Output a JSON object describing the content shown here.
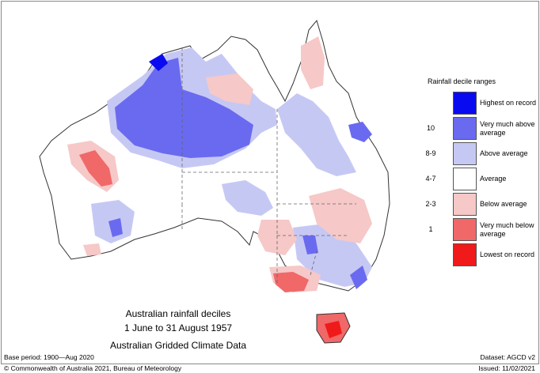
{
  "map": {
    "titles": [
      "Australian rainfall deciles",
      "1 June to 31 August 1957",
      "Australian Gridded Climate Data"
    ],
    "base_period": "Base period: 1900—Aug 2020",
    "dataset": "Dataset: AGCD v2",
    "copyright": "© Commonwealth of Australia 2021, Bureau of Meteorology",
    "issued": "Issued: 11/02/2021"
  },
  "legend": {
    "title": "Rainfall decile ranges",
    "items": [
      {
        "decile": "",
        "label": "Highest on record",
        "color": "#0a0af0"
      },
      {
        "decile": "10",
        "label": "Very much above average",
        "color": "#6a6af0"
      },
      {
        "decile": "8-9",
        "label": "Above average",
        "color": "#c6c8f4"
      },
      {
        "decile": "4-7",
        "label": "Average",
        "color": "#ffffff"
      },
      {
        "decile": "2-3",
        "label": "Below average",
        "color": "#f6c8c8"
      },
      {
        "decile": "1",
        "label": "Very much below average",
        "color": "#f06868"
      },
      {
        "decile": "",
        "label": "Lowest on record",
        "color": "#f01a1a"
      }
    ]
  }
}
